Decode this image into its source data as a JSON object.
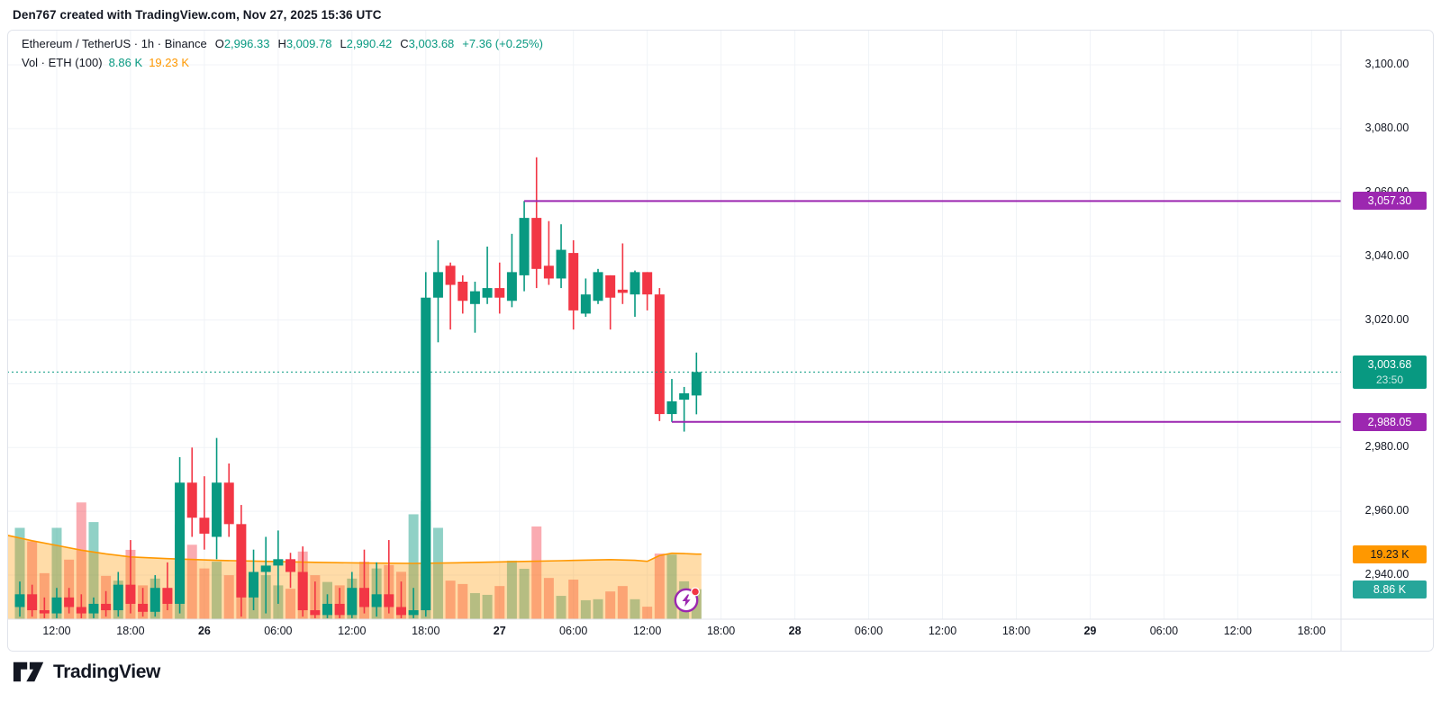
{
  "watermark": "Den767 created with TradingView.com, Nov 27, 2025 15:36 UTC",
  "legend": {
    "title": "Ethereum / TetherUS · 1h · Binance",
    "o_label": "O",
    "o": "2,996.33",
    "h_label": "H",
    "h": "3,009.78",
    "l_label": "L",
    "l": "2,990.42",
    "c_label": "C",
    "c": "3,003.68",
    "change": "+7.36 (+0.25%)",
    "vol_title": "Vol · ETH (100)",
    "vol_value": "8.86 K",
    "vol_ma_value": "19.23 K"
  },
  "axis_badges": {
    "level_high": "3,057.30",
    "last_price": "3,003.68",
    "countdown": "23:50",
    "level_low": "2,988.05",
    "vol_ma": "19.23 K",
    "vol": "8.86 K"
  },
  "logo_text": "TradingView",
  "colors": {
    "up": "#089981",
    "down": "#f23645",
    "vol_up": "rgba(8,153,129,0.45)",
    "vol_down": "rgba(242,54,69,0.42)",
    "vol_ma_line": "#ff9800",
    "vol_ma_fill": "rgba(255,152,0,0.34)",
    "ray": "#9c27b0",
    "last_line": "#089981",
    "grid": "#f0f3f7",
    "axis_border": "#e0e3eb",
    "badge_last_bg": "#089981",
    "badge_ray_bg": "#9c27b0",
    "badge_volma_bg": "#ff9800",
    "badge_volma_text": "#131722",
    "badge_vol_bg": "#26a69a"
  },
  "chart_data": {
    "type": "candlestick",
    "title": "Ethereum / TetherUS",
    "interval": "1h",
    "exchange": "Binance",
    "price_range_visible": [
      2926,
      3074
    ],
    "candles_note": "each candle = [time, open, high, low, close, volume_K]",
    "candles": [
      [
        "Nov25 09:00",
        2930,
        2938,
        2927,
        2934,
        27
      ],
      [
        "Nov25 10:00",
        2934,
        2937,
        2927,
        2929,
        23
      ],
      [
        "Nov25 11:00",
        2929,
        2933,
        2926.5,
        2928,
        13.6
      ],
      [
        "Nov25 12:00",
        2928,
        2936,
        2926.5,
        2933,
        27
      ],
      [
        "Nov25 13:00",
        2933,
        2936,
        2928,
        2930,
        17.6
      ],
      [
        "Nov25 14:00",
        2930,
        2934,
        2926.5,
        2928,
        34.5
      ],
      [
        "Nov25 15:00",
        2928,
        2933,
        2926.5,
        2931,
        28.7
      ],
      [
        "Nov25 16:00",
        2931,
        2935,
        2927,
        2929,
        12.8
      ],
      [
        "Nov25 17:00",
        2929,
        2941,
        2927,
        2937,
        11.4
      ],
      [
        "Nov25 18:00",
        2937,
        2951,
        2928,
        2931,
        20.5
      ],
      [
        "Nov25 19:00",
        2931,
        2936,
        2927,
        2928.5,
        10
      ],
      [
        "Nov25 20:00",
        2928.5,
        2940,
        2927,
        2936,
        12
      ],
      [
        "Nov25 21:00",
        2936,
        2944,
        2929,
        2931,
        9
      ],
      [
        "Nov25 22:00",
        2931,
        2977,
        2928,
        2969,
        28
      ],
      [
        "Nov25 23:00",
        2969,
        2980,
        2952,
        2958,
        22
      ],
      [
        "Nov26 00:00",
        2958,
        2971,
        2948,
        2953,
        15
      ],
      [
        "Nov26 01:00",
        2952,
        2983,
        2945,
        2969,
        17
      ],
      [
        "Nov26 02:00",
        2969,
        2975,
        2952,
        2956,
        13
      ],
      [
        "Nov26 03:00",
        2956,
        2962,
        2927,
        2933,
        16
      ],
      [
        "Nov26 04:00",
        2933,
        2948,
        2929,
        2941,
        11
      ],
      [
        "Nov26 05:00",
        2941,
        2952,
        2928,
        2943,
        13
      ],
      [
        "Nov26 06:00",
        2943,
        2954,
        2931,
        2945,
        10
      ],
      [
        "Nov26 07:00",
        2945,
        2947,
        2936,
        2941,
        9
      ],
      [
        "Nov26 08:00",
        2941,
        2949,
        2927,
        2929,
        20
      ],
      [
        "Nov26 09:00",
        2929,
        2938,
        2926.5,
        2927.5,
        13
      ],
      [
        "Nov26 10:00",
        2927.5,
        2934,
        2926.5,
        2931,
        11
      ],
      [
        "Nov26 11:00",
        2931,
        2936,
        2926.5,
        2927.5,
        10
      ],
      [
        "Nov26 12:00",
        2927.5,
        2941,
        2926.5,
        2936,
        12
      ],
      [
        "Nov26 13:00",
        2936,
        2948,
        2928,
        2930,
        17
      ],
      [
        "Nov26 14:00",
        2930,
        2944,
        2927,
        2934,
        15
      ],
      [
        "Nov26 15:00",
        2934,
        2951,
        2928,
        2930,
        16
      ],
      [
        "Nov26 16:00",
        2930,
        2938,
        2926.5,
        2927.5,
        14
      ],
      [
        "Nov26 17:00",
        2927.5,
        2936,
        2926.5,
        2929,
        31
      ],
      [
        "Nov26 18:00",
        2929,
        3035,
        2927,
        3027,
        35
      ],
      [
        "Nov26 19:00",
        3027,
        3045,
        3013,
        3035,
        27
      ],
      [
        "Nov26 20:00",
        3037,
        3038,
        3017,
        3031,
        11.4
      ],
      [
        "Nov26 21:00",
        3032,
        3034,
        3022,
        3026,
        10.4
      ],
      [
        "Nov26 22:00",
        3025,
        3032,
        3016,
        3029,
        7.7
      ],
      [
        "Nov26 23:00",
        3027,
        3043,
        3025,
        3030,
        7.2
      ],
      [
        "Nov27 00:00",
        3030,
        3038,
        3022,
        3027,
        9.8
      ],
      [
        "Nov27 01:00",
        3026,
        3047,
        3024,
        3035,
        17.3
      ],
      [
        "Nov27 02:00",
        3034,
        3057.3,
        3029,
        3052,
        14.9
      ],
      [
        "Nov27 03:00",
        3052,
        3071,
        3030,
        3036,
        27.4
      ],
      [
        "Nov27 04:00",
        3037,
        3051,
        3031,
        3033,
        12.2
      ],
      [
        "Nov27 05:00",
        3033,
        3050,
        3030,
        3042,
        6.9
      ],
      [
        "Nov27 06:00",
        3041,
        3045,
        3017,
        3023,
        11.7
      ],
      [
        "Nov27 07:00",
        3022,
        3033,
        3021,
        3028,
        5.6
      ],
      [
        "Nov27 08:00",
        3026,
        3036,
        3025,
        3035,
        5.9
      ],
      [
        "Nov27 09:00",
        3034,
        3034,
        3017,
        3027,
        8.2
      ],
      [
        "Nov27 10:00",
        3029.5,
        3044,
        3025,
        3028.5,
        9.8
      ],
      [
        "Nov27 11:00",
        3028,
        3035.5,
        3021,
        3035,
        5.9
      ],
      [
        "Nov27 12:00",
        3035,
        3035,
        3023,
        3028,
        3.7
      ],
      [
        "Nov27 13:00",
        3028,
        3030,
        2988.3,
        2990.5,
        19.4
      ],
      [
        "Nov27 14:00",
        2990.5,
        3001.5,
        2988.05,
        2994.5,
        19.1
      ],
      [
        "Nov27 15:00",
        2995,
        2999,
        2985,
        2997,
        11.2
      ],
      [
        "Nov27 16:00",
        2996.33,
        3009.78,
        2990.42,
        3003.68,
        8.86
      ]
    ],
    "vol_ma_points": [
      [
        -1,
        24.8
      ],
      [
        1,
        23.2
      ],
      [
        3,
        21.8
      ],
      [
        5,
        20.4
      ],
      [
        7,
        19.3
      ],
      [
        9,
        18.4
      ],
      [
        12,
        17.9
      ],
      [
        16,
        17.4
      ],
      [
        20,
        17.1
      ],
      [
        24,
        16.8
      ],
      [
        28,
        16.6
      ],
      [
        32,
        16.5
      ],
      [
        36,
        16.7
      ],
      [
        40,
        17.0
      ],
      [
        44,
        17.3
      ],
      [
        48,
        17.6
      ],
      [
        50,
        17.4
      ],
      [
        51,
        17.1
      ],
      [
        52,
        18.8
      ],
      [
        53,
        19.5
      ],
      [
        54,
        19.4
      ],
      [
        55,
        19.23
      ]
    ],
    "levels": {
      "ray_high": {
        "price": 3057.3,
        "start_index": 41
      },
      "ray_low": {
        "price": 2988.05,
        "start_index": 53
      },
      "last_price": 3003.68,
      "current_volume_K": 8.86,
      "volume_ma_K": 19.23
    },
    "price_axis_labels": [
      [
        3100,
        "3,100.00"
      ],
      [
        3080,
        "3,080.00"
      ],
      [
        3060,
        "3,060.00"
      ],
      [
        3040,
        "3,040.00"
      ],
      [
        3020,
        "3,020.00"
      ],
      [
        2980,
        "2,980.00"
      ],
      [
        2960,
        "2,960.00"
      ],
      [
        2940,
        "2,940.00"
      ]
    ],
    "price_gridline_values": [
      3100,
      3080,
      3060,
      3040,
      3020,
      3000,
      2980,
      2960,
      2940
    ],
    "time_axis_labels": [
      [
        3,
        "12:00"
      ],
      [
        9,
        "18:00"
      ],
      [
        15,
        "26"
      ],
      [
        21,
        "06:00"
      ],
      [
        27,
        "12:00"
      ],
      [
        33,
        "18:00"
      ],
      [
        39,
        "27"
      ],
      [
        45,
        "06:00"
      ],
      [
        51,
        "12:00"
      ],
      [
        57,
        "18:00"
      ],
      [
        63,
        "28"
      ],
      [
        69,
        "06:00"
      ],
      [
        75,
        "12:00"
      ],
      [
        81,
        "18:00"
      ],
      [
        87,
        "29"
      ],
      [
        93,
        "06:00"
      ],
      [
        99,
        "12:00"
      ],
      [
        105,
        "18:00"
      ]
    ],
    "ylim": [
      2926,
      3105
    ],
    "grid": true
  }
}
